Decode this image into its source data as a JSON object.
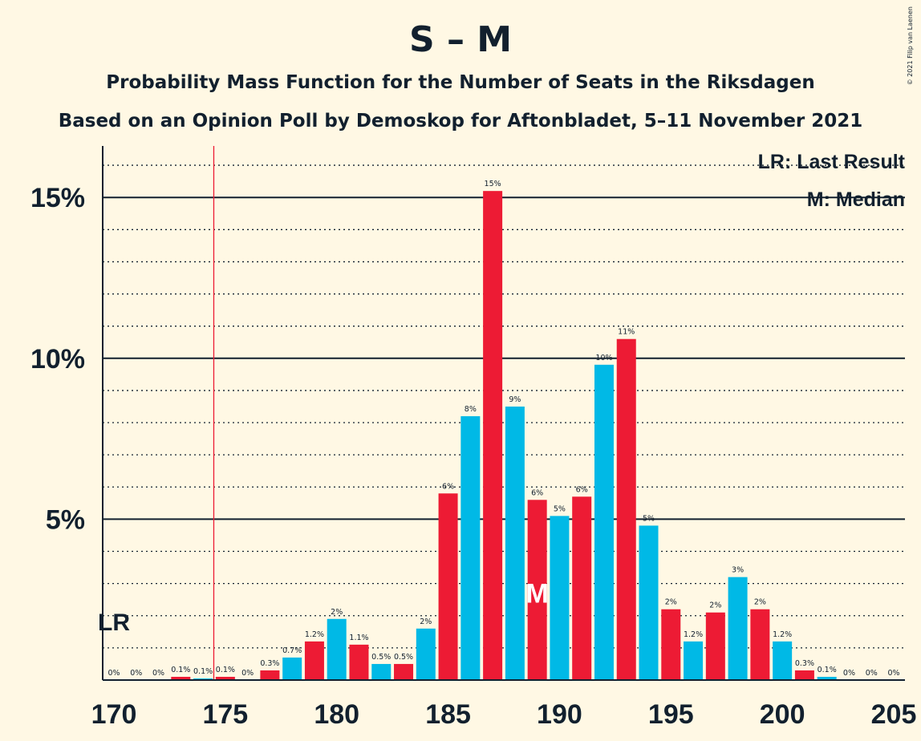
{
  "header": {
    "title": "S – M",
    "subtitle": "Probability Mass Function for the Number of Seats in the Riksdagen",
    "source": "Based on an Opinion Poll by Demoskop for Aftonbladet, 5–11 November 2021",
    "copyright": "© 2021 Filip van Laenen"
  },
  "legend": {
    "lr": "LR: Last Result",
    "median": "M: Median"
  },
  "markers": {
    "last_result_label": "LR",
    "median_label": "M"
  },
  "colors": {
    "background": "#FFF8E4",
    "blue": "#00B9E6",
    "red": "#ED1B34",
    "text": "#12202E"
  },
  "chart_data": {
    "type": "bar",
    "title": "S – M",
    "xlabel": "",
    "ylabel": "",
    "x": [
      170,
      171,
      172,
      173,
      174,
      175,
      176,
      177,
      178,
      179,
      180,
      181,
      182,
      183,
      184,
      185,
      186,
      187,
      188,
      189,
      190,
      191,
      192,
      193,
      194,
      195,
      196,
      197,
      198,
      199,
      200,
      201,
      202,
      203,
      204,
      205
    ],
    "values": [
      0,
      0,
      0,
      0.1,
      0.05,
      0.1,
      0,
      0.3,
      0.7,
      1.2,
      1.9,
      1.1,
      0.5,
      0.5,
      1.6,
      5.8,
      8.2,
      15.2,
      8.5,
      5.6,
      5.1,
      5.7,
      9.8,
      10.6,
      4.8,
      2.2,
      1.2,
      2.1,
      3.2,
      2.2,
      1.2,
      0.3,
      0.1,
      0,
      0,
      0
    ],
    "data_labels": [
      "0%",
      "0%",
      "0%",
      "0.1%",
      "0.1%",
      "0.1%",
      "0%",
      "0.3%",
      "0.7%",
      "1.2%",
      "2%",
      "1.1%",
      "0.5%",
      "0.5%",
      "2%",
      "6%",
      "8%",
      "15%",
      "9%",
      "6%",
      "5%",
      "6%",
      "10%",
      "11%",
      "5%",
      "2%",
      "1.2%",
      "2%",
      "3%",
      "2%",
      "1.2%",
      "0.3%",
      "0.1%",
      "0%",
      "0%",
      "0%"
    ],
    "x_ticks": [
      "170",
      "175",
      "180",
      "185",
      "190",
      "195",
      "200",
      "205"
    ],
    "y_ticks": [
      "5%",
      "10%",
      "15%"
    ],
    "ylim": [
      0,
      16.6
    ],
    "last_result_seat": 174,
    "median_seat": 189,
    "bar_colors": "alternating blue (even seats) and red (odd seats)",
    "grid": true,
    "legend_position": "top-right"
  }
}
